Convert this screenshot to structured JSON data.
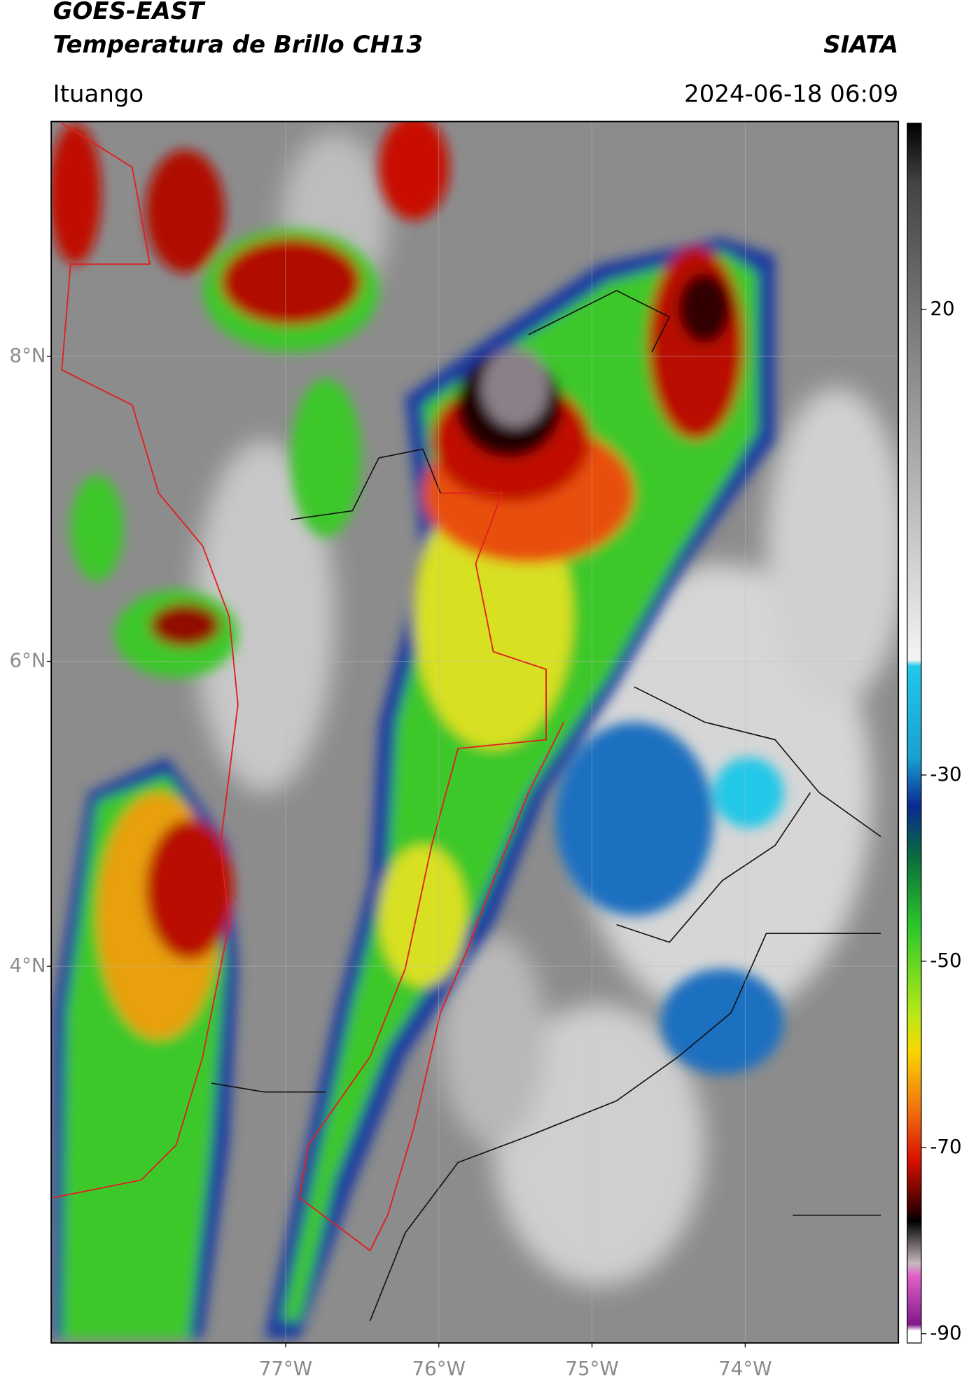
{
  "header": {
    "title": "GOES-EAST",
    "subtitle": "Temperatura de Brillo CH13",
    "source": "SIATA",
    "location": "Ituango",
    "datetime": "2024-06-18 06:09"
  },
  "map": {
    "xlim": [
      -78.53,
      -73.0
    ],
    "ylim": [
      1.53,
      9.54
    ],
    "xticks": [
      {
        "value": -77,
        "label": "77°W"
      },
      {
        "value": -76,
        "label": "76°W"
      },
      {
        "value": -75,
        "label": "75°W"
      },
      {
        "value": -74,
        "label": "74°W"
      }
    ],
    "yticks": [
      {
        "value": 8,
        "label": "8°N"
      },
      {
        "value": 6,
        "label": "6°N"
      },
      {
        "value": 4,
        "label": "4°N"
      }
    ],
    "grid": true
  },
  "colorbar": {
    "lim": [
      -91,
      40
    ],
    "ticks": [
      20,
      -30,
      -50,
      -70,
      -90
    ]
  }
}
